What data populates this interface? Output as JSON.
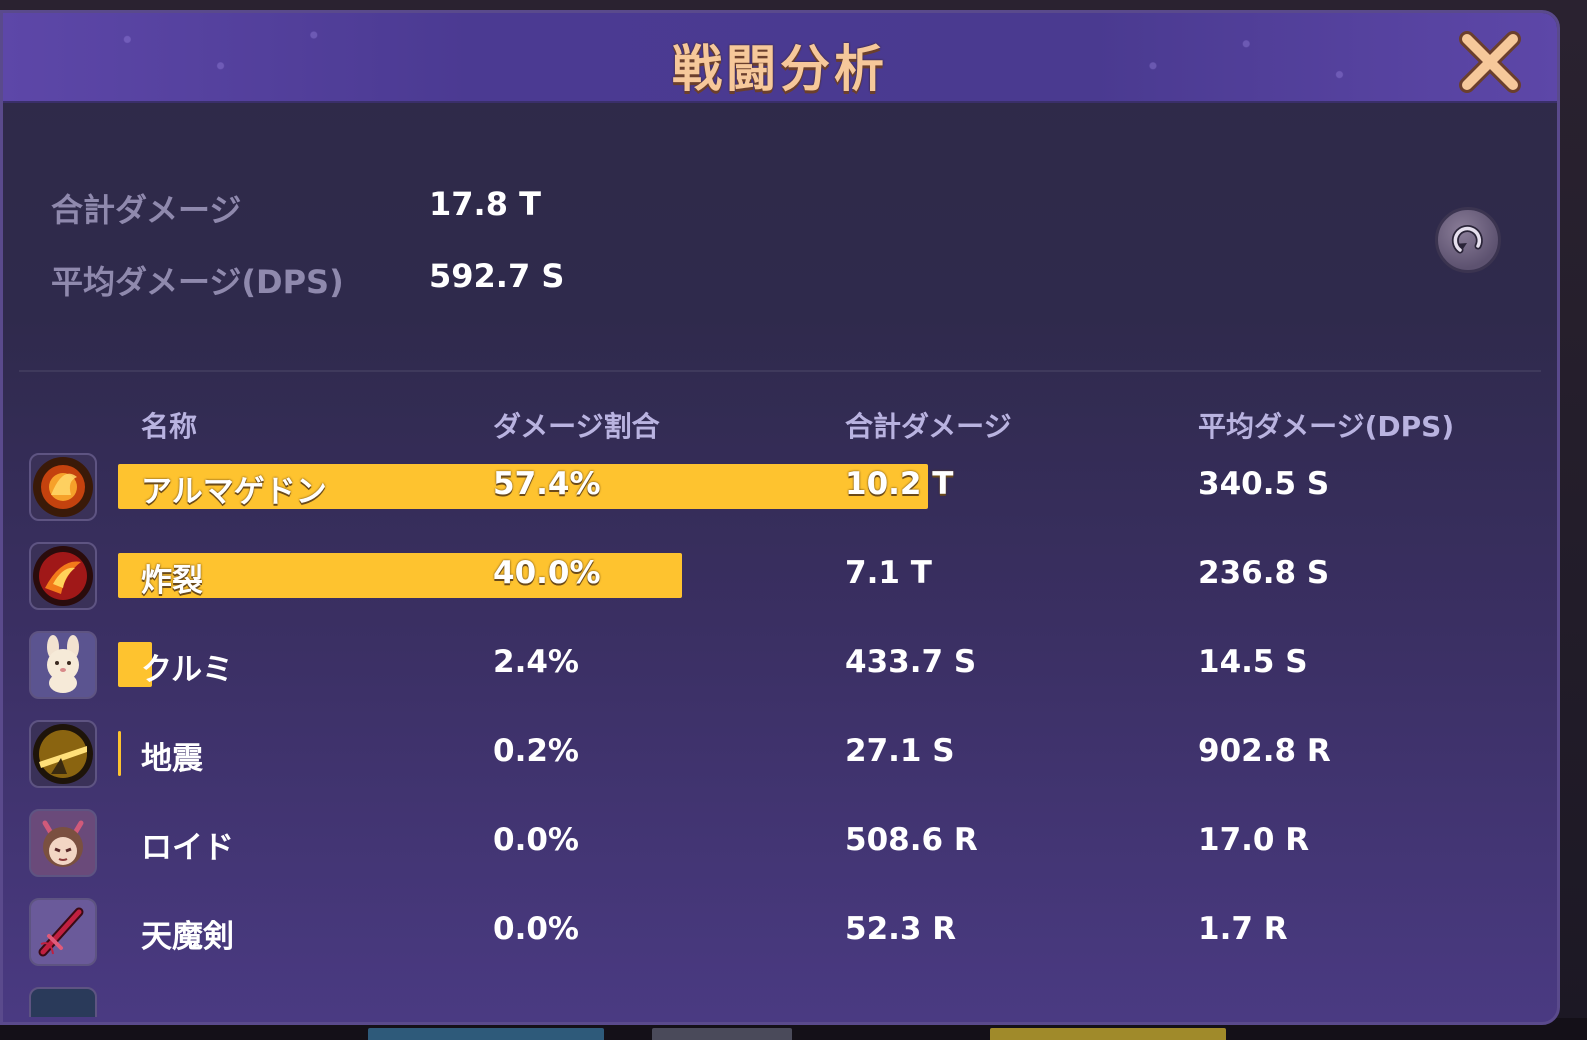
{
  "window": {
    "title": "戦闘分析",
    "close_icon": "close-icon",
    "refresh_icon": "refresh-icon"
  },
  "summary": {
    "total_label": "合計ダメージ",
    "total_value": "17.8 T",
    "dps_label": "平均ダメージ(DPS)",
    "dps_value": "592.7 S"
  },
  "table": {
    "headers": {
      "name": "名称",
      "share": "ダメージ割合",
      "total": "合計ダメージ",
      "dps": "平均ダメージ(DPS)"
    },
    "rows": [
      {
        "name": "アルマゲドン",
        "share": "57.4%",
        "share_value": 0.574,
        "total": "10.2 T",
        "dps": "340.5 S",
        "icon": "fire-meteor-icon"
      },
      {
        "name": "炸裂",
        "share": "40.0%",
        "share_value": 0.4,
        "total": "7.1 T",
        "dps": "236.8 S",
        "icon": "explosion-icon"
      },
      {
        "name": "クルミ",
        "share": "2.4%",
        "share_value": 0.024,
        "total": "433.7 S",
        "dps": "14.5 S",
        "icon": "rabbit-pet-icon"
      },
      {
        "name": "地震",
        "share": "0.2%",
        "share_value": 0.002,
        "total": "27.1 S",
        "dps": "902.8 R",
        "icon": "earthquake-icon"
      },
      {
        "name": "ロイド",
        "share": "0.0%",
        "share_value": 0.0,
        "total": "508.6 R",
        "dps": "17.0 R",
        "icon": "character-portrait-icon"
      },
      {
        "name": "天魔剣",
        "share": "0.0%",
        "share_value": 0.0,
        "total": "52.3 R",
        "dps": "1.7 R",
        "icon": "demon-sword-icon"
      }
    ]
  },
  "colors": {
    "bar": "#fec32f",
    "title": "#f6c89a",
    "panel": "#2f2a48"
  }
}
